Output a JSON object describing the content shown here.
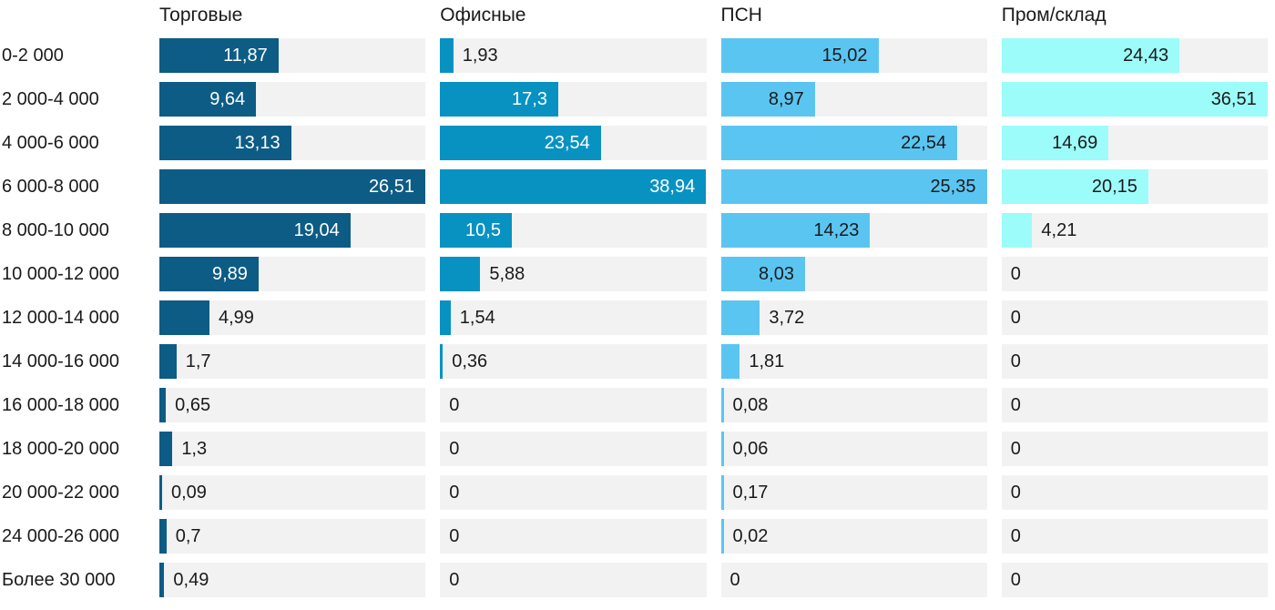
{
  "chart_data": {
    "type": "bar",
    "orientation": "horizontal",
    "scaling": "each column scaled independently to its own max value",
    "grid": false,
    "track_color": "#f2f2f2",
    "background_color": "#ffffff",
    "text_color": "#1a1a1a",
    "categories": [
      "0-2 000",
      "2 000-4 000",
      "4 000-6 000",
      "6 000-8 000",
      "8 000-10 000",
      "10 000-12 000",
      "12 000-14 000",
      "14 000-16 000",
      "16 000-18 000",
      "18 000-20 000",
      "20 000-22 000",
      "24 000-26 000",
      "Более 30 000"
    ],
    "series": [
      {
        "name": "Торговые",
        "color": "#0d5c85",
        "inside_label_color": "#ffffff",
        "max": 26.51,
        "values": [
          11.87,
          9.64,
          13.13,
          26.51,
          19.04,
          9.89,
          4.99,
          1.7,
          0.65,
          1.3,
          0.09,
          0.7,
          0.49
        ],
        "labels": [
          "11,87",
          "9,64",
          "13,13",
          "26,51",
          "19,04",
          "9,89",
          "4,99",
          "1,7",
          "0,65",
          "1,3",
          "0,09",
          "0,7",
          "0,49"
        ]
      },
      {
        "name": "Офисные",
        "color": "#0892c2",
        "inside_label_color": "#ffffff",
        "max": 38.94,
        "values": [
          1.93,
          17.3,
          23.54,
          38.94,
          10.5,
          5.88,
          1.54,
          0.36,
          0,
          0,
          0,
          0,
          0
        ],
        "labels": [
          "1,93",
          "17,3",
          "23,54",
          "38,94",
          "10,5",
          "5,88",
          "1,54",
          "0,36",
          "0",
          "0",
          "0",
          "0",
          "0"
        ]
      },
      {
        "name": "ПСН",
        "color": "#5bc5f1",
        "inside_label_color": "#1a1a1a",
        "max": 25.35,
        "values": [
          15.02,
          8.97,
          22.54,
          25.35,
          14.23,
          8.03,
          3.72,
          1.81,
          0.08,
          0.06,
          0.17,
          0.02,
          0
        ],
        "labels": [
          "15,02",
          "8,97",
          "22,54",
          "25,35",
          "14,23",
          "8,03",
          "3,72",
          "1,81",
          "0,08",
          "0,06",
          "0,17",
          "0,02",
          "0"
        ]
      },
      {
        "name": "Пром/склад",
        "color": "#9cfcf9",
        "inside_label_color": "#1a1a1a",
        "max": 36.51,
        "values": [
          24.43,
          36.51,
          14.69,
          20.15,
          4.21,
          0,
          0,
          0,
          0,
          0,
          0,
          0,
          0
        ],
        "labels": [
          "24,43",
          "36,51",
          "14,69",
          "20,15",
          "4,21",
          "0",
          "0",
          "0",
          "0",
          "0",
          "0",
          "0",
          "0"
        ]
      }
    ]
  }
}
